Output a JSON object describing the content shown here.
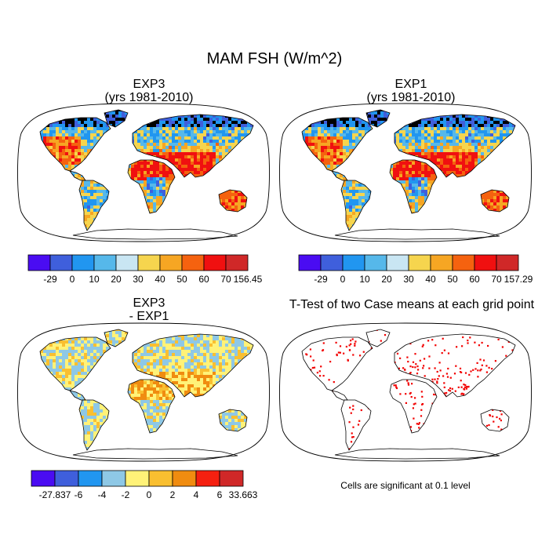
{
  "figure": {
    "title": "MAM FSH (W/m^2)"
  },
  "panels": [
    {
      "id": "exp3",
      "title_line1": "EXP3",
      "title_line2": "(yrs 1981-2010)"
    },
    {
      "id": "exp1",
      "title_line1": "EXP1",
      "title_line2": "(yrs 1981-2010)"
    },
    {
      "id": "diff",
      "title_line1": "EXP3",
      "title_line2": "- EXP1"
    },
    {
      "id": "ttest",
      "title_line1": "T-Test of two Case means at each grid point",
      "title_line2": ""
    }
  ],
  "colorbars": {
    "exp3": {
      "labels": [
        "-29",
        "0",
        "10",
        "20",
        "30",
        "40",
        "50",
        "60",
        "70",
        "156.45"
      ],
      "colors": [
        "#4a0cf2",
        "#3f5fdc",
        "#2196f0",
        "#56b8ea",
        "#c9e6f3",
        "#f6d54e",
        "#f6a623",
        "#f5620f",
        "#f01010",
        "#d02828"
      ]
    },
    "exp1": {
      "labels": [
        "-29",
        "0",
        "10",
        "20",
        "30",
        "40",
        "50",
        "60",
        "70",
        "157.29"
      ],
      "colors": [
        "#4a0cf2",
        "#3f5fdc",
        "#2196f0",
        "#56b8ea",
        "#c9e6f3",
        "#f6d54e",
        "#f6a623",
        "#f5620f",
        "#f01010",
        "#d02828"
      ]
    },
    "diff": {
      "labels": [
        "-27.837",
        "-6",
        "-4",
        "-2",
        "0",
        "2",
        "4",
        "6",
        "33.663"
      ],
      "colors": [
        "#4a0cf2",
        "#3f5fdc",
        "#2196f0",
        "#8ec8e6",
        "#fff278",
        "#f9bf30",
        "#f08c10",
        "#f52010",
        "#d02828"
      ]
    }
  },
  "ttest_note": "Cells are significant at 0.1 level",
  "map_colors": {
    "exp_continents": [
      "#f01010",
      "#f5620f",
      "#f6a623",
      "#f6d54e",
      "#56b8ea",
      "#2196f0",
      "#3f5fdc"
    ],
    "diff_continents": [
      "#56b8ea",
      "#8ec8e6",
      "#fff278",
      "#f9bf30",
      "#2196f0"
    ],
    "significant": "#f20000"
  }
}
